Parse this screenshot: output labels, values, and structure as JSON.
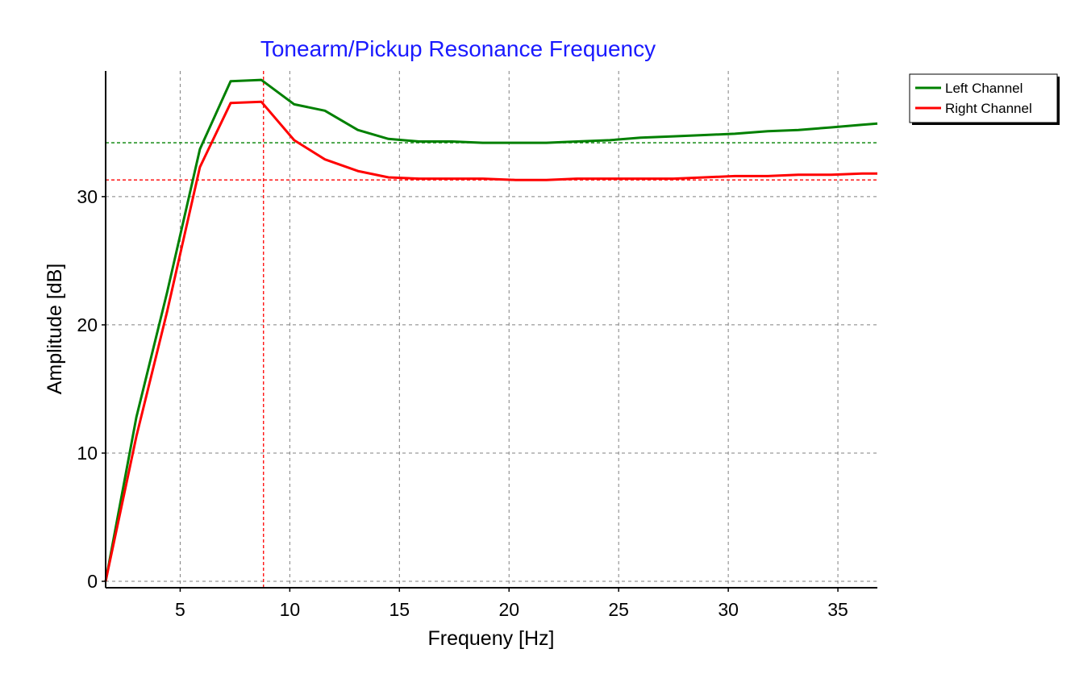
{
  "chart_data": {
    "type": "line",
    "title": "Tonearm/Pickup Resonance Frequency",
    "xlabel": "Frequeny [Hz]",
    "ylabel": "Amplitude [dB]",
    "xlim": [
      1.6,
      36.8
    ],
    "ylim": [
      -0.5,
      39.8
    ],
    "xticks": [
      5,
      10,
      15,
      20,
      25,
      30,
      35
    ],
    "yticks": [
      0,
      10,
      20,
      30
    ],
    "grid": true,
    "legend_position": "top-right, outside plot",
    "colors": {
      "title": "#1a1aff",
      "grid": "#808080",
      "axis": "#000000"
    },
    "series": [
      {
        "name": "Left Channel",
        "color": "#008000",
        "x": [
          1.6,
          3.0,
          4.4,
          5.9,
          7.3,
          8.7,
          10.2,
          11.6,
          13.1,
          14.5,
          15.9,
          17.4,
          18.8,
          20.3,
          21.7,
          23.1,
          24.6,
          26.0,
          27.5,
          28.9,
          30.3,
          31.8,
          33.2,
          34.7,
          36.1,
          36.8
        ],
        "values": [
          0.0,
          12.8,
          22.5,
          33.7,
          39.0,
          39.1,
          37.2,
          36.7,
          35.2,
          34.5,
          34.3,
          34.3,
          34.2,
          34.2,
          34.2,
          34.3,
          34.4,
          34.6,
          34.7,
          34.8,
          34.9,
          35.1,
          35.2,
          35.4,
          35.6,
          35.7
        ]
      },
      {
        "name": "Right Channel",
        "color": "#ff0000",
        "x": [
          1.6,
          3.0,
          4.4,
          5.9,
          7.3,
          8.7,
          10.2,
          11.6,
          13.1,
          14.5,
          15.9,
          17.4,
          18.8,
          20.3,
          21.7,
          23.1,
          24.6,
          26.0,
          27.5,
          28.9,
          30.3,
          31.8,
          33.2,
          34.7,
          36.1,
          36.8
        ],
        "values": [
          0.0,
          11.3,
          21.0,
          32.3,
          37.3,
          37.4,
          34.4,
          32.9,
          32.0,
          31.5,
          31.4,
          31.4,
          31.4,
          31.3,
          31.3,
          31.4,
          31.4,
          31.4,
          31.4,
          31.5,
          31.6,
          31.6,
          31.7,
          31.7,
          31.8,
          31.8
        ]
      }
    ],
    "reference_lines": [
      {
        "orientation": "horizontal",
        "value": 34.2,
        "color": "#008000"
      },
      {
        "orientation": "horizontal",
        "value": 31.3,
        "color": "#ff0000"
      },
      {
        "orientation": "vertical",
        "value": 8.8,
        "color": "#ff0000"
      }
    ]
  }
}
